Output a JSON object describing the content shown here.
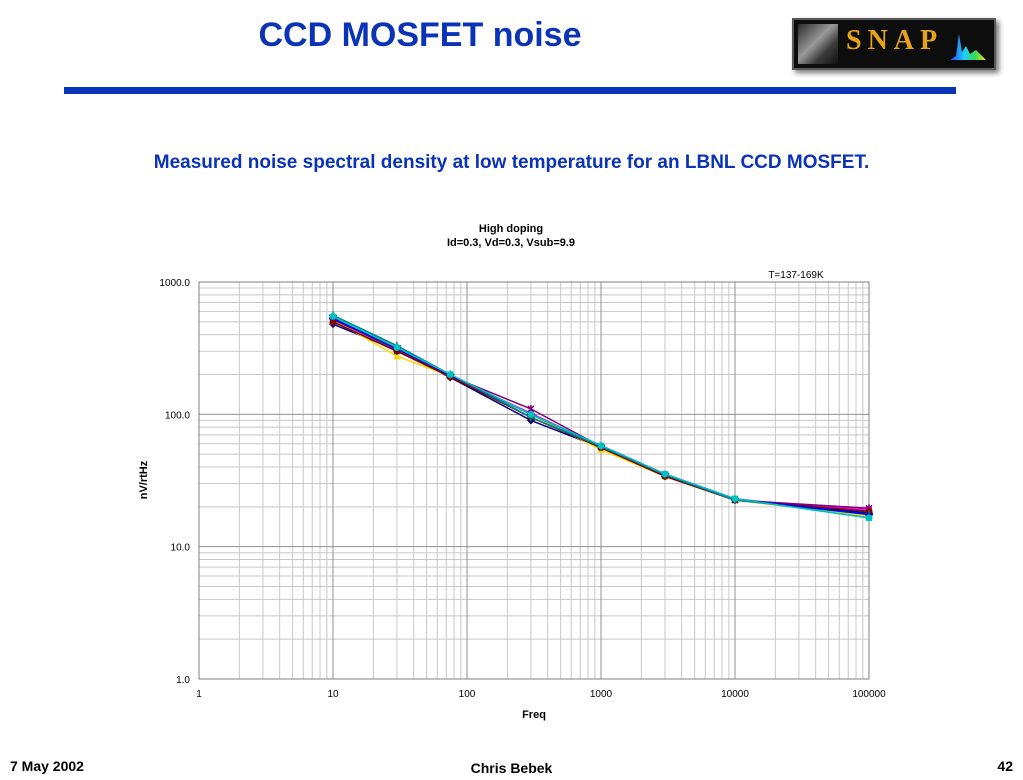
{
  "slide": {
    "title": "CCD MOSFET noise",
    "subtitle": "Measured noise spectral density at low temperature for an LBNL CCD MOSFET.",
    "logo_text": "SNAP",
    "footer_date": "7 May 2002",
    "footer_author": "Chris Bebek",
    "footer_page": "42",
    "accent_color": "#0a33b8"
  },
  "chart_data": {
    "type": "line",
    "title": "High doping",
    "subtitle": "Id=0.3, Vd=0.3, Vsub=9.9",
    "annotation": "T=137-169K",
    "xlabel": "Freq",
    "ylabel": "nV/rtHz",
    "x_scale": "log",
    "y_scale": "log",
    "xlim": [
      1,
      100000
    ],
    "ylim": [
      1,
      1000
    ],
    "x_ticks": [
      "1",
      "10",
      "100",
      "1000",
      "10000",
      "100000"
    ],
    "y_ticks": [
      "1.0",
      "10.0",
      "100.0",
      "1000.0"
    ],
    "grid": true,
    "x": [
      10,
      30,
      75,
      300,
      1000,
      3000,
      10000,
      100000
    ],
    "series": [
      {
        "color": "#000080",
        "marker": "diamond",
        "values": [
          480,
          305,
          190,
          90,
          56,
          34,
          22.5,
          18
        ]
      },
      {
        "color": "#ff00ff",
        "marker": "square",
        "values": [
          500,
          300,
          195,
          102,
          57,
          34.5,
          22.5,
          19
        ]
      },
      {
        "color": "#ffd700",
        "marker": "triangle",
        "values": [
          520,
          275,
          195,
          100,
          54,
          34,
          22.5,
          17
        ]
      },
      {
        "color": "#20c0c0",
        "marker": "x",
        "values": [
          540,
          300,
          200,
          100,
          57,
          35,
          23,
          16.5
        ]
      },
      {
        "color": "#800080",
        "marker": "star",
        "values": [
          520,
          310,
          195,
          110,
          57,
          35,
          22.5,
          19.5
        ]
      },
      {
        "color": "#800000",
        "marker": "circle",
        "values": [
          500,
          300,
          192,
          95,
          56,
          34,
          22.5,
          18.5
        ]
      },
      {
        "color": "#008080",
        "marker": "plus",
        "values": [
          560,
          330,
          200,
          95,
          57,
          35,
          22.5,
          17.5
        ]
      },
      {
        "color": "#0000ff",
        "marker": "dash",
        "values": [
          530,
          315,
          198,
          100,
          58,
          35.5,
          23,
          17.5
        ]
      },
      {
        "color": "#00c0c0",
        "marker": "circle",
        "values": [
          550,
          320,
          200,
          100,
          58,
          35.5,
          23,
          16.5
        ]
      }
    ]
  }
}
